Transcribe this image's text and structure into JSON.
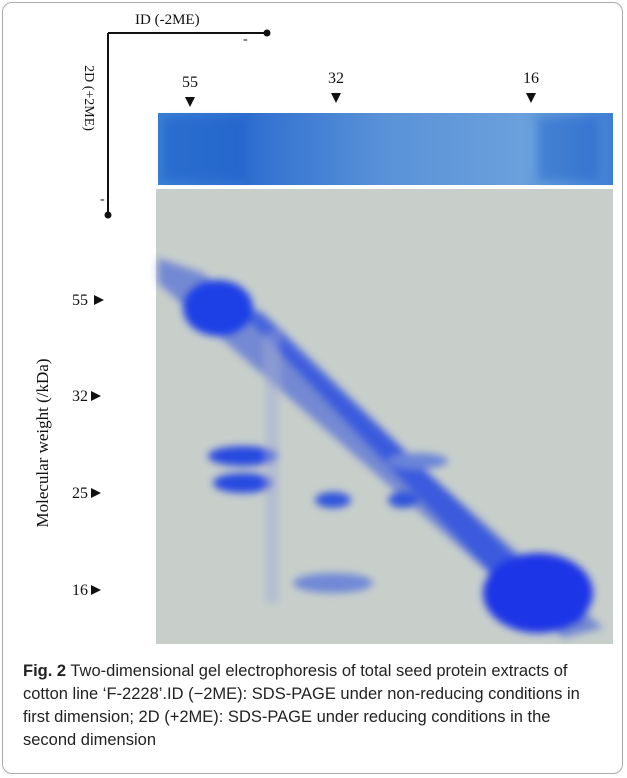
{
  "figure": {
    "first_dimension_label": "ID (-2ME)",
    "second_dimension_label": "2D (+2ME)",
    "polarity_marks": [
      "-",
      "-"
    ],
    "top_markers": [
      "55",
      "32",
      "16"
    ],
    "y_axis_label": "Molecular weight (/kDa)",
    "left_markers": [
      "55",
      "32",
      "25",
      "16"
    ]
  },
  "caption": {
    "label": "Fig. 2",
    "text": "Two-dimensional gel electrophoresis of total seed protein extracts of cotton line ‘F-2228’.ID (−2ME): SDS-PAGE under non-reducing conditions in first dimension; 2D (+2ME): SDS-PAGE under reducing conditions in the second dimension"
  }
}
